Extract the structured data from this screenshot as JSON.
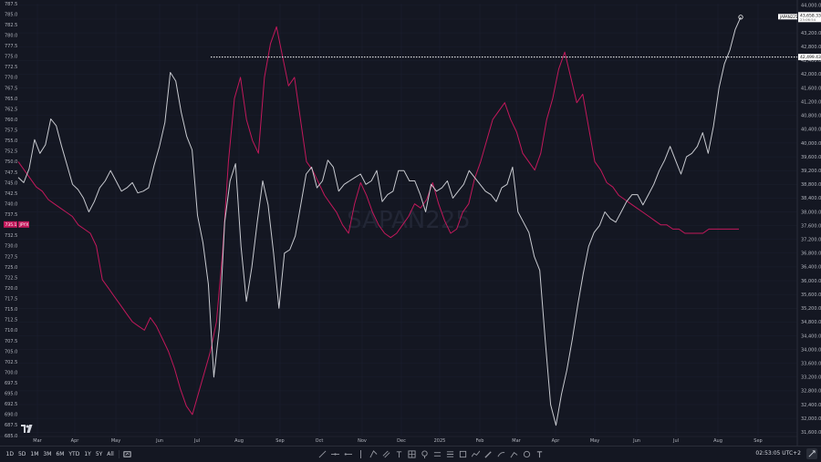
{
  "watermark": "SAPAN225",
  "colors": {
    "background": "#141722",
    "nikkei": "#c8cad0",
    "jpyx": "#c2185b",
    "grid": "#1c2030",
    "axis_text": "#b2b5be",
    "label_bg_white": "#ffffff",
    "label_bg_pink": "#c2185b"
  },
  "bottom_bar": {
    "timeframes": [
      "1D",
      "5D",
      "1M",
      "3M",
      "6M",
      "YTD",
      "1Y",
      "5Y",
      "All"
    ],
    "clock": "02:53:05 UTC+2"
  },
  "icons": [
    "chart-type-icon",
    "trendline-icon",
    "horizontal-line-icon",
    "horizontal-ray-icon",
    "vertical-line-icon",
    "pitchfork-icon",
    "parallel-channel-icon",
    "text-icon",
    "pattern-icon",
    "pin-icon",
    "long-position-icon",
    "short-position-icon",
    "rectangle-icon",
    "path-icon",
    "brush-icon",
    "ruler-icon",
    "forecast-icon",
    "measure-icon",
    "clock-icon",
    "cursor-icon",
    "fullscreen-icon",
    "tradingview-logo-icon"
  ],
  "chart_data": {
    "type": "line",
    "x_labels": [
      "Mar",
      "Apr",
      "May",
      "Jun",
      "Jul",
      "Aug",
      "Sep",
      "Oct",
      "Nov",
      "Dec",
      "2025",
      "Feb",
      "Mar",
      "Apr",
      "May",
      "Jun",
      "Jul",
      "Aug",
      "Sep"
    ],
    "left_axis": {
      "ticks": [
        "787.5",
        "785.0",
        "782.5",
        "780.0",
        "777.5",
        "775.0",
        "772.5",
        "770.0",
        "767.5",
        "765.0",
        "762.5",
        "760.0",
        "757.5",
        "755.0",
        "752.5",
        "750.0",
        "747.5",
        "745.0",
        "742.5",
        "740.0",
        "737.5",
        "735.0",
        "732.5",
        "730.0",
        "727.5",
        "725.0",
        "722.5",
        "720.0",
        "717.5",
        "715.0",
        "712.5",
        "710.0",
        "707.5",
        "705.0",
        "702.5",
        "700.0",
        "697.5",
        "695.0",
        "692.5",
        "690.0",
        "687.5",
        "685.0"
      ],
      "range": [
        685.0,
        787.5
      ]
    },
    "right_axis": {
      "ticks": [
        "44,000.00",
        "43,600.00",
        "43,200.00",
        "42,800.00",
        "42,400.00",
        "42,000.00",
        "41,600.00",
        "41,200.00",
        "40,800.00",
        "40,400.00",
        "40,000.00",
        "39,600.00",
        "39,200.00",
        "38,800.00",
        "38,400.00",
        "38,000.00",
        "37,600.00",
        "37,200.00",
        "36,800.00",
        "36,400.00",
        "36,000.00",
        "35,600.00",
        "35,200.00",
        "34,800.00",
        "34,400.00",
        "34,000.00",
        "33,600.00",
        "33,200.00",
        "32,800.00",
        "32,400.00",
        "32,000.00",
        "31,600.00"
      ],
      "range": [
        31500,
        44050
      ]
    },
    "price_labels": {
      "nikkei_name": "JAPAN225",
      "nikkei_price": "43,658.33",
      "nikkei_time": "23:06:54",
      "ref_line": "42,499.43",
      "jpyx_price": "735.1",
      "jpyx_name": "JPYX"
    },
    "ref_line_value": 42499.43,
    "series": [
      {
        "name": "JAPAN225",
        "axis": "right",
        "values": [
          39000,
          38850,
          39250,
          40100,
          39700,
          39950,
          40700,
          40500,
          39900,
          39350,
          38800,
          38650,
          38400,
          38000,
          38300,
          38700,
          38900,
          39200,
          38900,
          38600,
          38700,
          38850,
          38550,
          38600,
          38700,
          39350,
          39900,
          40600,
          42050,
          41800,
          40900,
          40200,
          39800,
          37900,
          37100,
          35900,
          33200,
          34600,
          37700,
          38900,
          39400,
          37000,
          35400,
          36400,
          37700,
          38900,
          38200,
          36800,
          35200,
          36800,
          36900,
          37300,
          38200,
          39100,
          39300,
          38700,
          38900,
          39500,
          39300,
          38600,
          38800,
          38900,
          39000,
          39100,
          38800,
          38900,
          39200,
          38300,
          38500,
          38600,
          39200,
          39200,
          38900,
          38900,
          38500,
          38000,
          38800,
          38600,
          38700,
          38900,
          38400,
          38600,
          38800,
          39200,
          39000,
          38800,
          38600,
          38500,
          38300,
          38700,
          38800,
          39300,
          38000,
          37700,
          37400,
          36700,
          36300,
          34300,
          32400,
          31800,
          32700,
          33400,
          34300,
          35300,
          36200,
          37000,
          37400,
          37600,
          38000,
          37800,
          37700,
          38000,
          38300,
          38500,
          38500,
          38200,
          38500,
          38800,
          39200,
          39500,
          39900,
          39500,
          39100,
          39600,
          39700,
          39900,
          40300,
          39700,
          40500,
          41600,
          42300,
          42700,
          43300,
          43658
        ]
      },
      {
        "name": "JPYX",
        "axis": "left",
        "values": [
          750,
          748,
          746,
          744,
          743,
          741,
          740,
          739,
          738,
          737,
          735,
          734,
          733,
          730,
          722,
          720,
          718,
          716,
          714,
          712,
          711,
          710,
          713,
          711,
          708,
          705,
          701,
          696,
          692,
          690,
          695,
          700,
          705,
          712,
          728,
          750,
          765,
          770,
          760,
          755,
          752,
          770,
          778,
          782,
          775,
          768,
          770,
          760,
          750,
          748,
          745,
          742,
          740,
          738,
          735,
          733,
          740,
          745,
          742,
          738,
          735,
          733,
          732,
          733,
          735,
          737,
          740,
          739,
          741,
          745,
          740,
          736,
          733,
          734,
          738,
          740,
          746,
          750,
          755,
          760,
          762,
          764,
          760,
          757,
          752,
          750,
          748,
          752,
          760,
          765,
          772,
          776,
          770,
          764,
          766,
          758,
          750,
          748,
          745,
          744,
          742,
          741,
          740,
          739,
          738,
          737,
          736,
          735,
          735,
          734,
          734,
          733,
          733,
          733,
          733,
          734,
          734,
          734,
          734,
          734,
          734
        ]
      }
    ]
  }
}
